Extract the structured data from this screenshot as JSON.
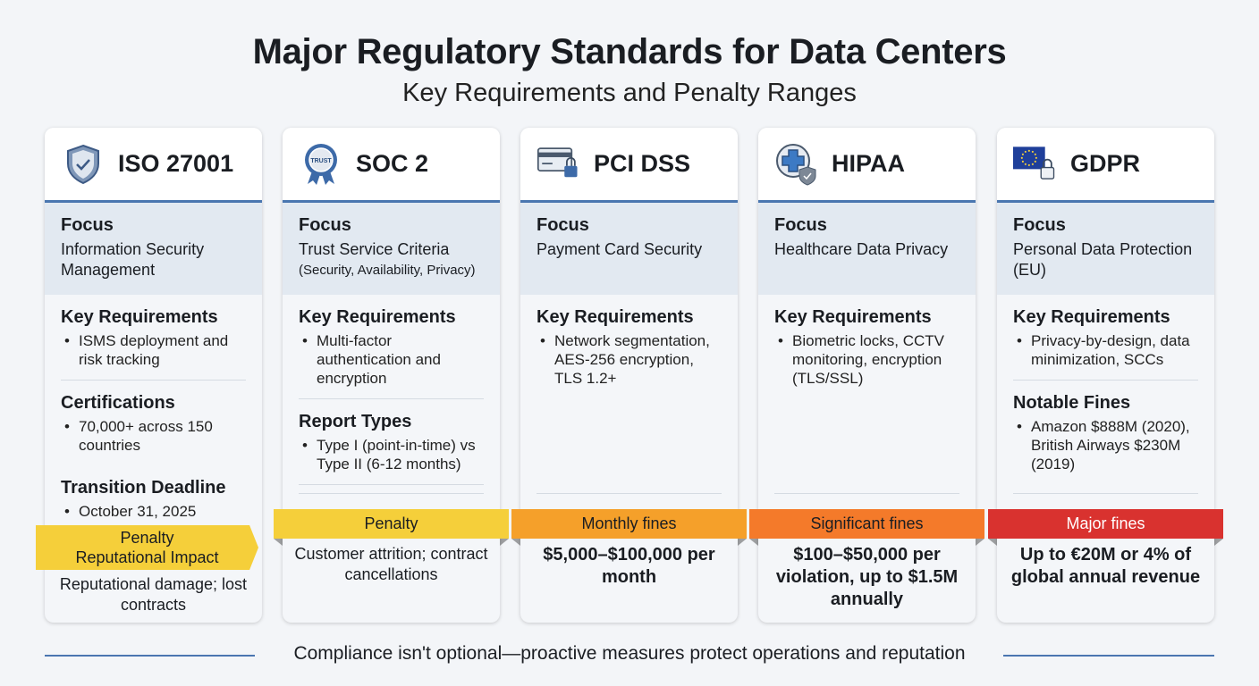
{
  "title": "Major Regulatory Standards for Data Centers",
  "subtitle": "Key Requirements and Penalty Ranges",
  "footer": "Compliance isn't optional—proactive measures protect operations and reputation",
  "cards": [
    {
      "name": "ISO 27001",
      "icon": "shield-check-icon",
      "focus_label": "Focus",
      "focus": "Information Security Management",
      "sections": [
        {
          "heading": "Key Requirements",
          "items": [
            "ISMS deployment and risk tracking"
          ],
          "divider_after": true
        },
        {
          "heading": "Certifications",
          "items": [
            "70,000+ across 150 countries"
          ],
          "divider_after": false
        },
        {
          "heading": "Transition Deadline",
          "items": [
            "October 31, 2025"
          ],
          "divider_after": false
        }
      ],
      "penalty_label": "Penalty",
      "penalty_sub": "Reputational Impact",
      "penalty": "Reputational damage; lost contracts",
      "ribbon_color": "#f5cf3a",
      "ribbon_text_color": "#1a1d22"
    },
    {
      "name": "SOC 2",
      "icon": "trust-badge-icon",
      "focus_label": "Focus",
      "focus": "Trust Service Criteria",
      "focus_note": "(Security, Availability, Privacy)",
      "sections": [
        {
          "heading": "Key Requirements",
          "items": [
            "Multi-factor authentication and encryption"
          ],
          "divider_after": true
        },
        {
          "heading": "Report Types",
          "items": [
            "Type I (point-in-time) vs Type II (6-12 months)"
          ],
          "divider_after": true
        }
      ],
      "penalty_label": "Penalty",
      "penalty": "Customer attrition; contract cancellations",
      "ribbon_color": "#f5cf3a",
      "ribbon_text_color": "#1a1d22"
    },
    {
      "name": "PCI DSS",
      "icon": "credit-card-lock-icon",
      "focus_label": "Focus",
      "focus": "Payment Card Security",
      "sections": [
        {
          "heading": "Key Requirements",
          "items": [
            "Network segmentation, AES-256 encryption, TLS 1.2+"
          ],
          "divider_after": false
        }
      ],
      "penalty_label": "Monthly fines",
      "penalty": "$5,000–$100,000 per month",
      "ribbon_color": "#f5a02a",
      "ribbon_text_color": "#1a1d22"
    },
    {
      "name": "HIPAA",
      "icon": "medical-cross-shield-icon",
      "focus_label": "Focus",
      "focus": "Healthcare Data Privacy",
      "sections": [
        {
          "heading": "Key Requirements",
          "items": [
            "Biometric locks, CCTV monitoring, encryption (TLS/SSL)"
          ],
          "divider_after": false
        }
      ],
      "penalty_label": "Significant fines",
      "penalty": "$100–$50,000 per violation, up to $1.5M annually",
      "ribbon_color": "#f47a2a",
      "ribbon_text_color": "#1a1d22"
    },
    {
      "name": "GDPR",
      "icon": "eu-flag-lock-icon",
      "focus_label": "Focus",
      "focus": "Personal Data Protection (EU)",
      "sections": [
        {
          "heading": "Key Requirements",
          "items": [
            "Privacy-by-design, data minimization, SCCs"
          ],
          "divider_after": true
        },
        {
          "heading": "Notable Fines",
          "items": [
            "Amazon $888M (2020), British Airways $230M (2019)"
          ],
          "divider_after": false
        }
      ],
      "penalty_label": "Major fines",
      "penalty": "Up to €20M or 4% of global annual revenue",
      "ribbon_color": "#d9322f",
      "ribbon_text_color": "#ffffff"
    }
  ]
}
